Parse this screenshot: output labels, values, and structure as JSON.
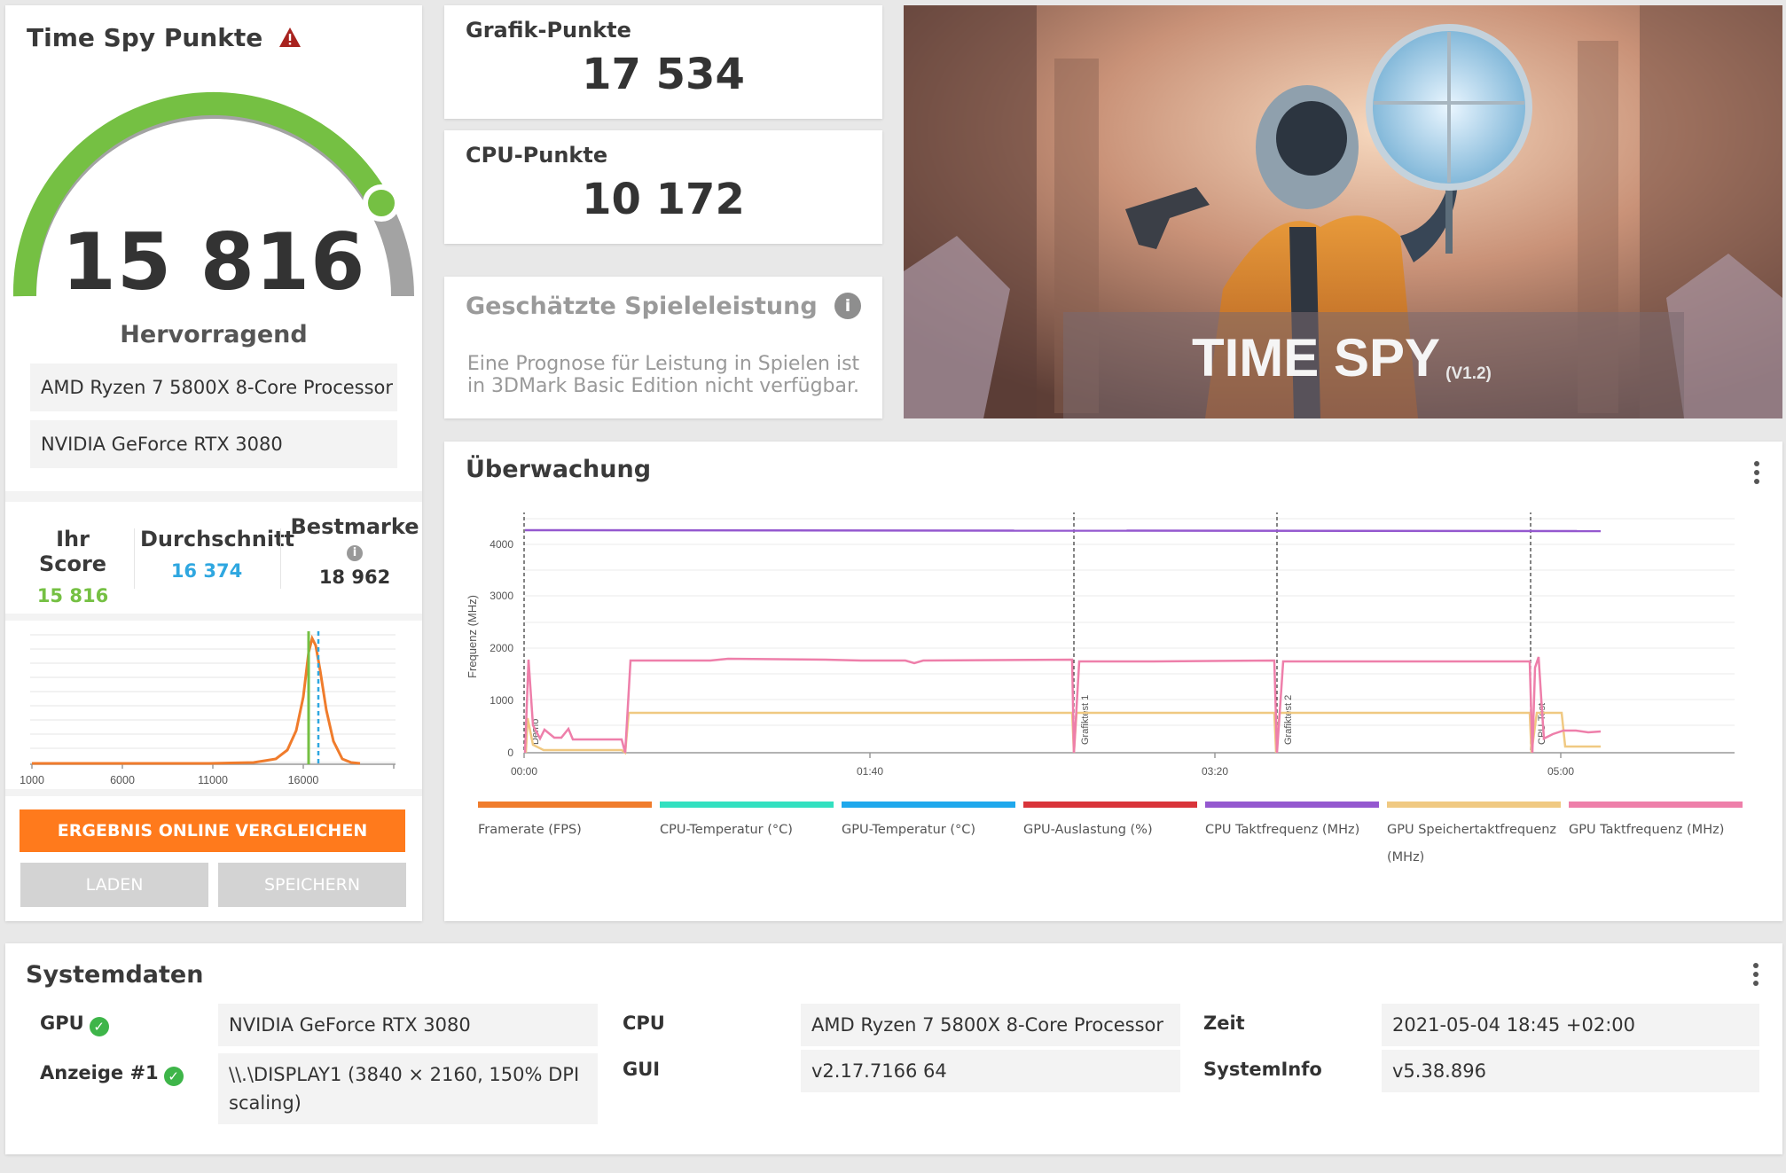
{
  "score_panel": {
    "title": "Time Spy Punkte",
    "score": "15 816",
    "rating": "Hervorragend",
    "cpu": "AMD Ryzen 7 5800X 8-Core Processor",
    "gpu": "NVIDIA GeForce RTX 3080",
    "your_score_label": "Ihr Score",
    "your_score": "15 816",
    "average_label": "Durchschnitt",
    "average": "16 374",
    "best_label": "Bestmarke",
    "best": "18 962",
    "dist_ticks": [
      "1000",
      "6000",
      "11000",
      "16000"
    ],
    "compare_button": "ERGEBNIS ONLINE VERGLEICHEN",
    "load_button": "LADEN",
    "save_button": "SPEICHERN",
    "colors": {
      "green": "#75c043",
      "blue": "#2fa7e0",
      "orange": "#ff7a1c"
    }
  },
  "graphics": {
    "label": "Grafik-Punkte",
    "value": "17 534"
  },
  "cpu_score": {
    "label": "CPU-Punkte",
    "value": "10 172"
  },
  "game_perf": {
    "title": "Geschätzte Spieleleistung",
    "line1": "Eine Prognose für Leistung in Spielen ist",
    "line2": "in 3DMark Basic Edition nicht verfügbar."
  },
  "banner": {
    "title": "TIME SPY",
    "version": "(V1.2)"
  },
  "monitor": {
    "title": "Überwachung",
    "ylabel": "Frequenz (MHz)",
    "yticks": [
      "0",
      "1000",
      "2000",
      "3000",
      "4000"
    ],
    "xticks": [
      "00:00",
      "01:40",
      "03:20",
      "05:00"
    ],
    "markers": [
      "Demo",
      "Grafiktest 1",
      "Grafiktest 2",
      "CPU-Test"
    ],
    "legend": [
      {
        "label": "Framerate (FPS)",
        "color": "#f07c2c"
      },
      {
        "label": "CPU-Temperatur (°C)",
        "color": "#33e0c0"
      },
      {
        "label": "GPU-Temperatur (°C)",
        "color": "#1fa8ec"
      },
      {
        "label": "GPU-Auslastung (%)",
        "color": "#d9343a"
      },
      {
        "label": "CPU Taktfrequenz (MHz)",
        "color": "#9458cf"
      },
      {
        "label": "GPU Speichertaktfrequenz (MHz)",
        "color": "#f0c982"
      },
      {
        "label": "GPU Taktfrequenz (MHz)",
        "color": "#ee7faa"
      }
    ]
  },
  "system": {
    "title": "Systemdaten",
    "gpu_label": "GPU",
    "gpu": "NVIDIA GeForce RTX 3080",
    "display_label": "Anzeige #1",
    "display": "\\\\.\\DISPLAY1 (3840 × 2160, 150% DPI scaling)",
    "cpu_label": "CPU",
    "cpu": "AMD Ryzen 7 5800X 8-Core Processor",
    "gui_label": "GUI",
    "gui": "v2.17.7166 64",
    "time_label": "Zeit",
    "time": "2021-05-04 18:45 +02:00",
    "sysinfo_label": "SystemInfo",
    "sysinfo": "v5.38.896"
  }
}
